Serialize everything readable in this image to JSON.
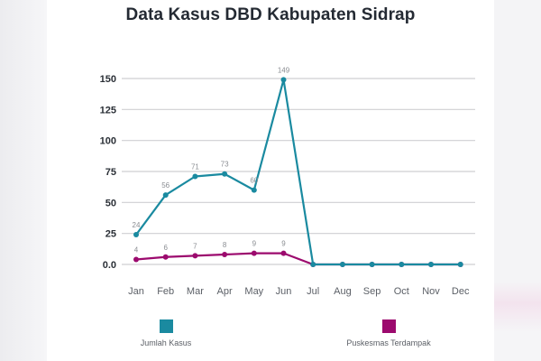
{
  "title": "Data Kasus DBD Kabupaten Sidrap",
  "colors": {
    "jumlah_kasus": "#1a8aa0",
    "puskesmas_terdampak": "#9c0a6e",
    "grid": "#cfcfd2",
    "axis_text": "#2a2f36",
    "label_text": "#8a8d92"
  },
  "legend": [
    {
      "name": "Jumlah Kasus",
      "color": "#1a8aa0"
    },
    {
      "name": "Puskesmas Terdampak",
      "color": "#9c0a6e"
    }
  ],
  "chart_data": {
    "type": "line",
    "title": "Data Kasus DBD Kabupaten Sidrap",
    "xlabel": "",
    "ylabel": "",
    "categories": [
      "Jan",
      "Feb",
      "Mar",
      "Apr",
      "May",
      "Jun",
      "Jul",
      "Aug",
      "Sep",
      "Oct",
      "Nov",
      "Dec"
    ],
    "y_ticks": [
      "0.0",
      "25",
      "50",
      "75",
      "100",
      "125",
      "150"
    ],
    "ylim": [
      0,
      150
    ],
    "grid": true,
    "legend_position": "bottom",
    "series": [
      {
        "name": "Jumlah Kasus",
        "values": [
          24,
          56,
          71,
          73,
          60,
          149,
          0,
          0,
          0,
          0,
          0,
          0
        ],
        "data_labels": [
          "24",
          "56",
          "71",
          "73",
          "60",
          "149",
          "",
          "",
          "",
          "",
          "",
          ""
        ]
      },
      {
        "name": "Puskesmas Terdampak",
        "values": [
          4,
          6,
          7,
          8,
          9,
          9,
          0,
          0,
          0,
          0,
          0,
          0
        ],
        "data_labels": [
          "4",
          "6",
          "7",
          "8",
          "9",
          "9",
          "",
          "",
          "",
          "",
          "",
          ""
        ]
      }
    ]
  }
}
